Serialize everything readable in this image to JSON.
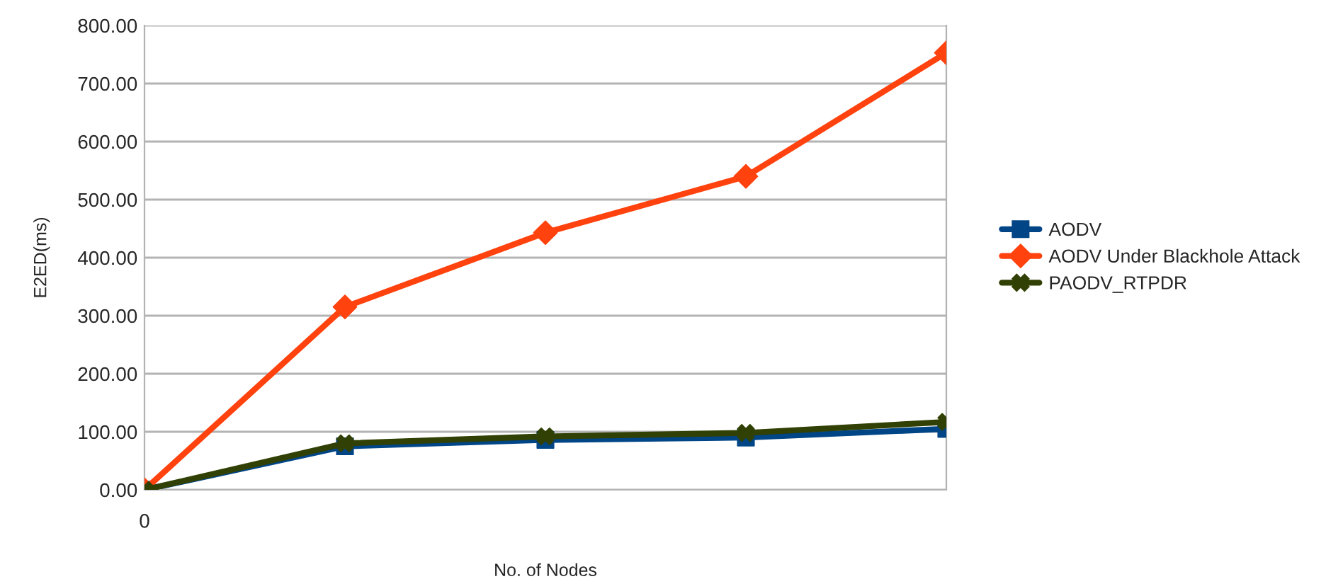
{
  "chart_data": {
    "type": "line",
    "xlabel": "No. of Nodes",
    "ylabel": "E2ED(ms)",
    "categories": [
      "0",
      null,
      null,
      null,
      null
    ],
    "series": [
      {
        "name": "AODV",
        "color": "#004586",
        "marker": "square",
        "values": [
          0,
          75,
          86,
          90,
          105
        ]
      },
      {
        "name": "AODV Under Blackhole Attack",
        "color": "#ff420e",
        "marker": "diamond",
        "values": [
          0,
          315,
          443,
          540,
          753
        ]
      },
      {
        "name": "PAODV_RTPDR",
        "color": "#314004",
        "marker": "cross",
        "values": [
          0,
          80,
          92,
          98,
          117
        ]
      }
    ],
    "ylim": [
      0,
      800
    ],
    "yticks": [
      {
        "value": 0,
        "label": "0.00"
      },
      {
        "value": 100,
        "label": "100.00"
      },
      {
        "value": 200,
        "label": "200.00"
      },
      {
        "value": 300,
        "label": "300.00"
      },
      {
        "value": 400,
        "label": "400.00"
      },
      {
        "value": 500,
        "label": "500.00"
      },
      {
        "value": 600,
        "label": "600.00"
      },
      {
        "value": 700,
        "label": "700.00"
      },
      {
        "value": 800,
        "label": "800.00"
      }
    ],
    "grid": "y",
    "legend": "right"
  }
}
